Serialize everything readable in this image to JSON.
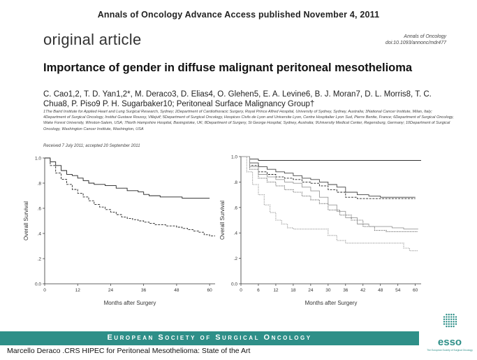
{
  "header": {
    "text": "Annals of Oncology Advance Access published November 4, 2011"
  },
  "article": {
    "section_label": "original article",
    "journal_line1": "Annals of Oncology",
    "journal_line2": "doi:10.1093/annonc/mdr477",
    "title": "Importance of gender in diffuse malignant peritoneal mesothelioma",
    "authors": "C. Cao1,2, T. D. Yan1,2*, M. Deraco3, D. Elias4, O. Glehen5, E. A. Levine6, B. J. Moran7, D. L. Morris8, T. C. Chua8, P. Piso9 P. H. Sugarbaker10; Peritoneal Surface Malignancy Group†",
    "affiliations": "1The Baird Institute for Applied Heart and Lung Surgical Research, Sydney; 2Department of Cardiothoracic Surgery, Royal Prince Alfred Hospital, University of Sydney, Sydney, Australia; 3National Cancer Institute, Milan, Italy; 4Department of Surgical Oncology, Institut Gustave Roussy, Villejuif; 5Department of Surgical Oncology, Hospices Civils de Lyon and Universite Lyon, Centre Hospitalier Lyon Sud, Pierre Benite, France; 6Department of Surgical Oncology, Wake Forest University, Winston-Salem, USA; 7North Hampshire Hospital, Basingstoke, UK; 8Department of Surgery, St George Hospital, Sydney, Australia; 9University Medical Center, Regensburg, Germany; 10Department of Surgical Oncology, Washington Cancer Institute, Washington, USA",
    "received": "Received 7 July 2011; accepted 20 September 2011"
  },
  "footer": {
    "society": "European Society of Surgical Oncology",
    "caption": "Marcello Deraco .CRS HIPEC for Peritoneal Mesothelioma: State of the Art",
    "logo_text": "esso",
    "logo_subtext": "The European Society of Surgical Oncology",
    "bar_color": "#2e8f88"
  },
  "chart_data": [
    {
      "type": "line",
      "ylabel": "Overall Survival",
      "xlabel": "Months after Surgery",
      "xlim": [
        0,
        62
      ],
      "ylim": [
        0,
        1.0
      ],
      "x_ticks": [
        "0",
        "12",
        "24",
        "36",
        "48",
        "60"
      ],
      "y_ticks": [
        "0.0",
        ".2",
        ".4",
        ".6",
        ".8",
        "1.0"
      ],
      "series": [
        {
          "style": "solid",
          "points": [
            [
              0,
              1.0
            ],
            [
              2,
              0.97
            ],
            [
              4,
              0.94
            ],
            [
              6,
              0.9
            ],
            [
              8,
              0.87
            ],
            [
              10,
              0.86
            ],
            [
              12,
              0.84
            ],
            [
              14,
              0.82
            ],
            [
              16,
              0.8
            ],
            [
              18,
              0.79
            ],
            [
              22,
              0.78
            ],
            [
              26,
              0.76
            ],
            [
              30,
              0.74
            ],
            [
              34,
              0.73
            ],
            [
              36,
              0.71
            ],
            [
              38,
              0.7
            ],
            [
              42,
              0.69
            ],
            [
              46,
              0.69
            ],
            [
              50,
              0.68
            ],
            [
              54,
              0.68
            ],
            [
              60,
              0.68
            ]
          ]
        },
        {
          "style": "dashed",
          "points": [
            [
              0,
              1.0
            ],
            [
              2,
              0.94
            ],
            [
              4,
              0.88
            ],
            [
              6,
              0.83
            ],
            [
              8,
              0.79
            ],
            [
              10,
              0.75
            ],
            [
              12,
              0.72
            ],
            [
              14,
              0.69
            ],
            [
              16,
              0.66
            ],
            [
              18,
              0.63
            ],
            [
              20,
              0.61
            ],
            [
              22,
              0.59
            ],
            [
              24,
              0.57
            ],
            [
              26,
              0.55
            ],
            [
              28,
              0.53
            ],
            [
              30,
              0.52
            ],
            [
              32,
              0.51
            ],
            [
              34,
              0.5
            ],
            [
              36,
              0.49
            ],
            [
              38,
              0.48
            ],
            [
              40,
              0.47
            ],
            [
              42,
              0.47
            ],
            [
              44,
              0.46
            ],
            [
              46,
              0.46
            ],
            [
              48,
              0.45
            ],
            [
              50,
              0.44
            ],
            [
              52,
              0.43
            ],
            [
              54,
              0.42
            ],
            [
              56,
              0.41
            ],
            [
              58,
              0.39
            ],
            [
              60,
              0.38
            ],
            [
              62,
              0.38
            ]
          ]
        }
      ]
    },
    {
      "type": "line",
      "ylabel": "Overall Survival",
      "xlabel": "Months after Surgery",
      "xlim": [
        0,
        62
      ],
      "ylim": [
        0,
        1.0
      ],
      "x_ticks": [
        "0",
        "6",
        "12",
        "18",
        "24",
        "30",
        "36",
        "42",
        "48",
        "54",
        "60"
      ],
      "y_ticks": [
        "0.0",
        ".2",
        ".4",
        ".6",
        ".8",
        "1.0"
      ],
      "series": [
        {
          "style": "solid",
          "color": "#333333",
          "points": [
            [
              0,
              1.0
            ],
            [
              3,
              0.98
            ],
            [
              6,
              0.97
            ],
            [
              60,
              0.97
            ],
            [
              62,
              0.97
            ]
          ]
        },
        {
          "style": "solid",
          "color": "#444444",
          "points": [
            [
              0,
              1.0
            ],
            [
              3,
              0.95
            ],
            [
              6,
              0.92
            ],
            [
              9,
              0.9
            ],
            [
              12,
              0.88
            ],
            [
              15,
              0.87
            ],
            [
              18,
              0.85
            ],
            [
              21,
              0.83
            ],
            [
              24,
              0.82
            ],
            [
              27,
              0.8
            ],
            [
              30,
              0.78
            ],
            [
              33,
              0.76
            ],
            [
              36,
              0.72
            ],
            [
              40,
              0.7
            ],
            [
              44,
              0.69
            ],
            [
              48,
              0.68
            ],
            [
              54,
              0.68
            ],
            [
              60,
              0.68
            ]
          ]
        },
        {
          "style": "dashed",
          "color": "#222222",
          "points": [
            [
              0,
              1.0
            ],
            [
              3,
              0.93
            ],
            [
              6,
              0.88
            ],
            [
              9,
              0.86
            ],
            [
              12,
              0.84
            ],
            [
              15,
              0.83
            ],
            [
              18,
              0.82
            ],
            [
              21,
              0.8
            ],
            [
              24,
              0.79
            ],
            [
              27,
              0.77
            ],
            [
              30,
              0.74
            ],
            [
              33,
              0.72
            ],
            [
              36,
              0.68
            ],
            [
              40,
              0.67
            ],
            [
              44,
              0.67
            ],
            [
              48,
              0.67
            ],
            [
              54,
              0.67
            ],
            [
              60,
              0.67
            ]
          ]
        },
        {
          "style": "dotted",
          "color": "#555555",
          "points": [
            [
              0,
              1.0
            ],
            [
              3,
              0.9
            ],
            [
              6,
              0.83
            ],
            [
              9,
              0.8
            ],
            [
              12,
              0.77
            ],
            [
              15,
              0.74
            ],
            [
              18,
              0.72
            ],
            [
              21,
              0.69
            ],
            [
              24,
              0.66
            ],
            [
              27,
              0.63
            ],
            [
              30,
              0.58
            ],
            [
              34,
              0.54
            ],
            [
              38,
              0.5
            ],
            [
              42,
              0.45
            ],
            [
              46,
              0.42
            ],
            [
              50,
              0.41
            ],
            [
              54,
              0.41
            ],
            [
              58,
              0.41
            ],
            [
              61,
              0.41
            ]
          ]
        },
        {
          "style": "solid",
          "color": "#999999",
          "points": [
            [
              0,
              1.0
            ],
            [
              3,
              0.92
            ],
            [
              6,
              0.86
            ],
            [
              9,
              0.84
            ],
            [
              12,
              0.82
            ],
            [
              15,
              0.8
            ],
            [
              18,
              0.79
            ],
            [
              21,
              0.76
            ],
            [
              24,
              0.73
            ],
            [
              27,
              0.68
            ],
            [
              30,
              0.62
            ],
            [
              33,
              0.57
            ],
            [
              36,
              0.52
            ],
            [
              40,
              0.47
            ],
            [
              44,
              0.45
            ],
            [
              48,
              0.45
            ],
            [
              52,
              0.44
            ],
            [
              56,
              0.43
            ],
            [
              61,
              0.43
            ]
          ]
        },
        {
          "style": "dotted",
          "color": "#888888",
          "points": [
            [
              0,
              1.0
            ],
            [
              2,
              0.88
            ],
            [
              4,
              0.78
            ],
            [
              6,
              0.7
            ],
            [
              8,
              0.62
            ],
            [
              10,
              0.56
            ],
            [
              12,
              0.5
            ],
            [
              14,
              0.47
            ],
            [
              16,
              0.44
            ],
            [
              18,
              0.43
            ],
            [
              21,
              0.43
            ],
            [
              24,
              0.43
            ],
            [
              27,
              0.43
            ],
            [
              30,
              0.38
            ],
            [
              33,
              0.34
            ],
            [
              36,
              0.32
            ],
            [
              40,
              0.32
            ],
            [
              44,
              0.32
            ],
            [
              48,
              0.32
            ],
            [
              52,
              0.32
            ],
            [
              56,
              0.28
            ],
            [
              58,
              0.26
            ],
            [
              61,
              0.26
            ]
          ]
        }
      ]
    }
  ]
}
